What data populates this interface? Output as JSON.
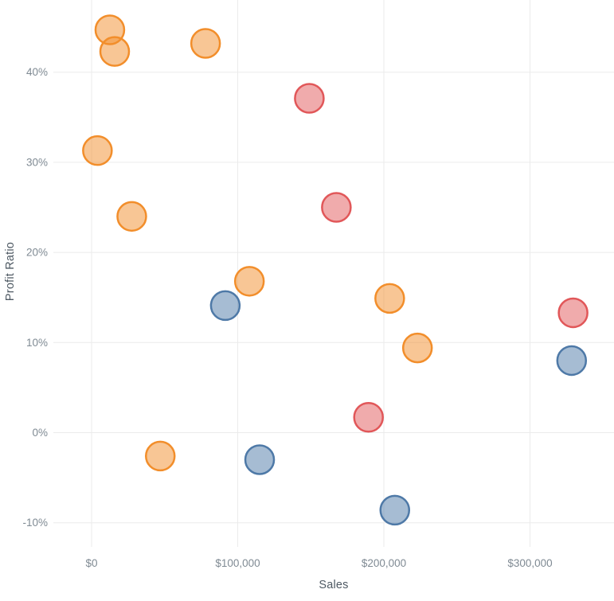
{
  "chart_data": {
    "type": "scatter",
    "title": "",
    "xlabel": "Sales",
    "ylabel": "Profit Ratio",
    "grid": true,
    "legend_position": "none",
    "xlim": [
      -26000,
      357500
    ],
    "ylim": [
      -12.7,
      48.0
    ],
    "x_ticks": [
      {
        "value": 0,
        "label": "$0"
      },
      {
        "value": 100000,
        "label": "$100,000"
      },
      {
        "value": 200000,
        "label": "$200,000"
      },
      {
        "value": 300000,
        "label": "$300,000"
      }
    ],
    "y_ticks": [
      {
        "value": -10,
        "label": "-10%"
      },
      {
        "value": 0,
        "label": "0%"
      },
      {
        "value": 10,
        "label": "10%"
      },
      {
        "value": 20,
        "label": "20%"
      },
      {
        "value": 30,
        "label": "30%"
      },
      {
        "value": 40,
        "label": "40%"
      }
    ],
    "marker": {
      "radius_px": 18,
      "fill_opacity": 0.5,
      "stroke_width": 2.5
    },
    "series": [
      {
        "name": "orange",
        "color": "#F28E2B",
        "points": [
          {
            "sales": 12500,
            "profit_ratio": 44.7
          },
          {
            "sales": 15800,
            "profit_ratio": 42.3
          },
          {
            "sales": 78000,
            "profit_ratio": 43.2
          },
          {
            "sales": 4000,
            "profit_ratio": 31.3
          },
          {
            "sales": 27500,
            "profit_ratio": 24.0
          },
          {
            "sales": 108000,
            "profit_ratio": 16.8
          },
          {
            "sales": 204000,
            "profit_ratio": 14.9
          },
          {
            "sales": 223000,
            "profit_ratio": 9.4
          },
          {
            "sales": 47000,
            "profit_ratio": -2.6
          }
        ]
      },
      {
        "name": "red",
        "color": "#E15759",
        "points": [
          {
            "sales": 149000,
            "profit_ratio": 37.1
          },
          {
            "sales": 167500,
            "profit_ratio": 25.0
          },
          {
            "sales": 329500,
            "profit_ratio": 13.3
          },
          {
            "sales": 189500,
            "profit_ratio": 1.7
          }
        ]
      },
      {
        "name": "blue",
        "color": "#4E79A7",
        "points": [
          {
            "sales": 91500,
            "profit_ratio": 14.1
          },
          {
            "sales": 115000,
            "profit_ratio": -3.0
          },
          {
            "sales": 328500,
            "profit_ratio": 8.0
          },
          {
            "sales": 207500,
            "profit_ratio": -8.6
          }
        ]
      }
    ]
  },
  "colors": {
    "background": "#FFFFFF",
    "gridline": "#EBEBEB",
    "tick_label": "#7F8A93",
    "axis_title": "#4E5963"
  }
}
